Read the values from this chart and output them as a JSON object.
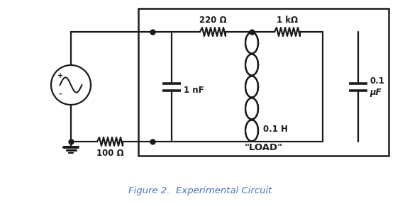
{
  "fig_width": 5.64,
  "fig_height": 2.91,
  "dpi": 100,
  "bg_color": "#ffffff",
  "line_color": "#1a1a1a",
  "caption_color": "#4472c4",
  "caption": "Figure 2.  Experimental Circuit",
  "caption_fontsize": 9.5,
  "label_220": "220 Ω",
  "label_1k": "1 kΩ",
  "label_1nF": "1 nF",
  "label_01H": "0.1 H",
  "label_01uF_line1": "0.1",
  "label_01uF_line2": "μF",
  "label_100": "100 Ω",
  "label_load": "\"LOAD\"",
  "label_plus": "+",
  "label_minus": "-"
}
